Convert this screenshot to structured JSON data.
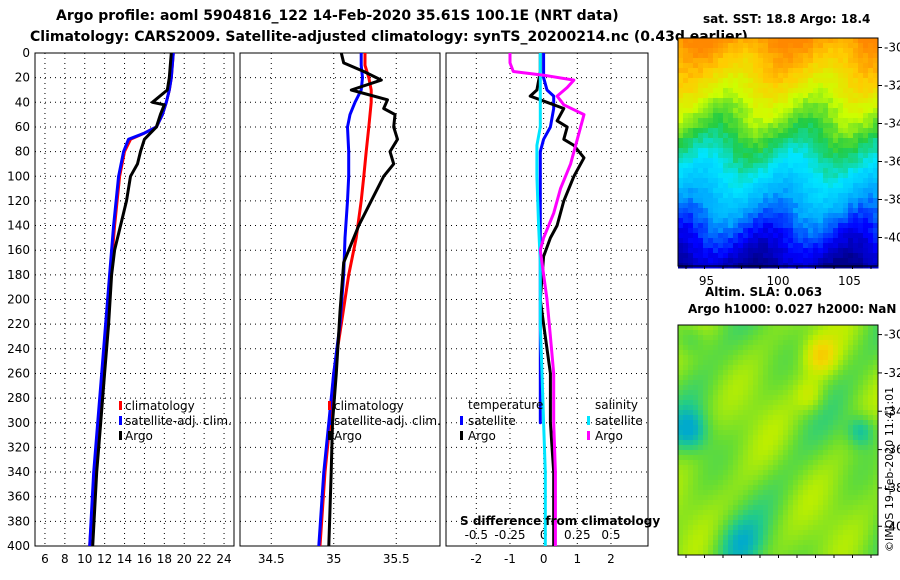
{
  "header": {
    "title_line1": "Argo profile: aoml 5904816_122 14-Feb-2020 35.61S 100.1E (NRT data)",
    "title_line2": "Climatology: CARS2009. Satellite-adjusted climatology: synTS_20200214.nc (0.43d earlier)"
  },
  "colors": {
    "climatology": "#ff0000",
    "satellite_adj": "#0000ff",
    "argo": "#000000",
    "t_satellite": "#0000ff",
    "t_argo": "#000000",
    "s_satellite": "#00e5ff",
    "s_argo": "#ff00ff",
    "grid": "#000000"
  },
  "depth_axis": {
    "ylim": [
      0,
      400
    ],
    "ticks": [
      "0",
      "20",
      "40",
      "60",
      "80",
      "100",
      "120",
      "140",
      "160",
      "180",
      "200",
      "220",
      "240",
      "260",
      "280",
      "300",
      "320",
      "340",
      "360",
      "380",
      "400"
    ]
  },
  "chart_data": [
    {
      "type": "line",
      "name": "temperature",
      "xlim": [
        5,
        25
      ],
      "ylim": [
        400,
        0
      ],
      "xticks": [
        6,
        8,
        10,
        12,
        14,
        16,
        18,
        20,
        22,
        24
      ],
      "xtick_labels": [
        "6",
        "8",
        "10",
        "12",
        "14",
        "16",
        "18",
        "20",
        "22",
        "24"
      ],
      "grid": "vertical dotted",
      "series": [
        {
          "name": "climatology",
          "color": "#ff0000",
          "x": [
            18.9,
            18.8,
            18.7,
            18.5,
            18.2,
            17.8,
            17.2,
            16.0,
            14.6,
            14.0,
            13.5,
            13.0,
            12.6,
            12.2,
            11.8,
            11.4,
            11.0,
            10.5
          ],
          "y": [
            0,
            10,
            20,
            30,
            40,
            50,
            60,
            65,
            70,
            80,
            100,
            140,
            180,
            220,
            260,
            300,
            340,
            400
          ]
        },
        {
          "name": "satellite-adj. clim.",
          "color": "#0000ff",
          "x": [
            18.9,
            18.8,
            18.7,
            18.5,
            18.2,
            17.8,
            17.2,
            16.0,
            14.4,
            13.9,
            13.4,
            12.9,
            12.5,
            12.1,
            11.7,
            11.3,
            10.9,
            10.5
          ],
          "y": [
            0,
            10,
            20,
            30,
            40,
            50,
            60,
            65,
            70,
            80,
            100,
            140,
            180,
            220,
            260,
            300,
            340,
            400
          ]
        },
        {
          "name": "Argo",
          "color": "#000000",
          "x": [
            18.7,
            18.6,
            18.5,
            18.3,
            16.8,
            18.0,
            17.6,
            17.2,
            16.0,
            15.6,
            15.3,
            14.6,
            14.2,
            13.0,
            12.7,
            12.4,
            12.0,
            11.6,
            11.2,
            10.8
          ],
          "y": [
            0,
            10,
            20,
            30,
            40,
            42,
            50,
            60,
            70,
            80,
            90,
            100,
            120,
            160,
            180,
            220,
            260,
            300,
            340,
            400
          ]
        }
      ],
      "legend": {
        "position": "bottom-right",
        "entries": [
          "climatology",
          "satellite-adj. clim.",
          "Argo"
        ]
      }
    },
    {
      "type": "line",
      "name": "salinity",
      "xlim": [
        34.25,
        35.85
      ],
      "ylim": [
        400,
        0
      ],
      "xticks": [
        34.5,
        35.0,
        35.5
      ],
      "xtick_labels": [
        "34.5",
        "35",
        "35.5"
      ],
      "grid": "vertical dotted",
      "series": [
        {
          "name": "climatology",
          "color": "#ff0000",
          "x": [
            35.25,
            35.25,
            35.28,
            35.3,
            35.3,
            35.29,
            35.28,
            35.26,
            35.24,
            35.22,
            35.18,
            35.12,
            35.06,
            35.0,
            34.97,
            34.93,
            34.89
          ],
          "y": [
            0,
            10,
            20,
            30,
            40,
            50,
            60,
            80,
            100,
            120,
            150,
            180,
            220,
            260,
            300,
            340,
            400
          ]
        },
        {
          "name": "satellite-adj. clim.",
          "color": "#0000ff",
          "x": [
            35.22,
            35.22,
            35.23,
            35.22,
            35.17,
            35.13,
            35.11,
            35.12,
            35.12,
            35.11,
            35.09,
            35.08,
            35.05,
            35.0,
            34.96,
            34.92,
            34.88
          ],
          "y": [
            0,
            10,
            20,
            30,
            40,
            50,
            60,
            80,
            100,
            120,
            150,
            180,
            220,
            260,
            300,
            340,
            400
          ]
        },
        {
          "name": "Argo",
          "color": "#000000",
          "x": [
            35.06,
            35.08,
            35.24,
            35.38,
            35.14,
            35.43,
            35.4,
            35.49,
            35.48,
            35.51,
            35.45,
            35.48,
            35.4,
            35.3,
            35.2,
            35.08,
            35.05,
            35.02,
            34.99,
            34.98,
            34.96
          ],
          "y": [
            0,
            8,
            15,
            22,
            30,
            38,
            45,
            50,
            60,
            70,
            80,
            90,
            100,
            120,
            140,
            170,
            210,
            260,
            300,
            340,
            400
          ]
        }
      ],
      "legend": {
        "position": "bottom-right",
        "entries": [
          "climatology",
          "satellite-adj. clim.",
          "Argo"
        ]
      }
    },
    {
      "type": "line",
      "name": "difference from climatology",
      "xlabel": "S difference from climatology",
      "xlim": [
        -2.9,
        3.1
      ],
      "ylim": [
        400,
        0
      ],
      "xticks": [
        -2,
        -1,
        0,
        1,
        2
      ],
      "xtick_labels": [
        "-2",
        "-1",
        "0",
        "1",
        "2"
      ],
      "secondary_xticks": [
        -0.5,
        -0.25,
        0,
        0.25,
        0.5
      ],
      "secondary_xtick_labels": [
        "-0.5",
        "-0.25",
        "0",
        "0.25",
        "0.5"
      ],
      "grid": "vertical dotted",
      "series": [
        {
          "name": "temperature satellite",
          "color": "#0000ff",
          "x": [
            0.0,
            0.0,
            0.1,
            0.3,
            0.3,
            0.2,
            0.0,
            -0.1,
            -0.1,
            -0.1,
            -0.1,
            -0.1,
            -0.1,
            -0.1
          ],
          "y": [
            0,
            20,
            30,
            35,
            45,
            60,
            70,
            80,
            100,
            140,
            160,
            200,
            260,
            300
          ]
        },
        {
          "name": "temperature Argo",
          "color": "#000000",
          "x": [
            -0.1,
            -0.1,
            -0.2,
            -0.4,
            -0.1,
            0.6,
            0.4,
            0.7,
            0.6,
            0.9,
            1.2,
            0.9,
            0.6,
            0.4,
            0.2,
            0.0,
            -0.1,
            0.0,
            0.1,
            0.2,
            0.2,
            0.3,
            0.3
          ],
          "y": [
            0,
            15,
            30,
            35,
            38,
            45,
            55,
            60,
            70,
            75,
            85,
            100,
            120,
            140,
            150,
            165,
            200,
            220,
            240,
            260,
            300,
            340,
            400
          ]
        },
        {
          "name": "salinity satellite",
          "color": "#00e5ff",
          "x": [
            -0.1,
            -0.1,
            -0.1,
            -0.1,
            -0.2,
            -0.2,
            -0.15,
            -0.1,
            -0.1,
            -0.05,
            0.0,
            0.05,
            0.05,
            0.05
          ],
          "y": [
            0,
            20,
            40,
            60,
            75,
            100,
            140,
            170,
            220,
            260,
            300,
            340,
            360,
            400
          ]
        },
        {
          "name": "salinity Argo",
          "color": "#ff00ff",
          "x": [
            -1.0,
            -1.0,
            -0.9,
            0.0,
            0.9,
            0.7,
            0.4,
            0.6,
            1.2,
            1.0,
            0.8,
            0.5,
            0.3,
            0.0,
            -0.1,
            0.1,
            0.2,
            0.3,
            0.3,
            0.35,
            0.35
          ],
          "y": [
            0,
            8,
            15,
            18,
            22,
            28,
            35,
            42,
            50,
            70,
            90,
            110,
            130,
            150,
            160,
            200,
            230,
            260,
            300,
            340,
            400
          ]
        }
      ],
      "legend_temperature": {
        "title": "temperature",
        "entries": [
          "satellite",
          "Argo"
        ]
      },
      "legend_salinity": {
        "title": "salinity",
        "entries": [
          "satellite",
          "Argo"
        ]
      }
    },
    {
      "type": "heatmap",
      "name": "sat_sst_map",
      "title": "sat. SST: 18.8 Argo: 18.4",
      "xlim": [
        93,
        107
      ],
      "ylim": [
        -41.5,
        -29.5
      ],
      "xticks": [
        95,
        100,
        105
      ],
      "xtick_labels": [
        "95",
        "100",
        "105"
      ],
      "yticks": [
        -30,
        -32,
        -34,
        -36,
        -38,
        -40
      ],
      "ytick_labels": [
        "-30",
        "-32",
        "-34",
        "-36",
        "-38",
        "-40"
      ],
      "colormap": [
        "#00008b",
        "#0000ff",
        "#00aaff",
        "#00e5ff",
        "#22cc44",
        "#ccff00",
        "#ffcc00",
        "#ff8800"
      ]
    },
    {
      "type": "heatmap",
      "name": "altim_sla_map",
      "title_line1": "Altim. SLA: 0.063",
      "title_line2": "Argo h1000: 0.027 h2000: NaN",
      "xlim": [
        93,
        107
      ],
      "ylim": [
        -41.5,
        -29.5
      ],
      "yticks": [
        -30,
        -32,
        -34,
        -36,
        -38,
        -40
      ],
      "ytick_labels": [
        "-30",
        "-32",
        "-34",
        "-36",
        "-38",
        "-40"
      ]
    }
  ],
  "legends": {
    "temp_panel": [
      "climatology",
      "satellite-adj. clim.",
      "Argo"
    ],
    "sal_panel": [
      "climatology",
      "satellite-adj. clim.",
      "Argo"
    ],
    "diff_temperature_title": "temperature",
    "diff_salinity_title": "salinity",
    "diff_temp_entries": [
      "satellite",
      "Argo"
    ],
    "diff_sal_entries": [
      "satellite",
      "Argo"
    ]
  },
  "credit": "©IMOS 19-Feb-2020 11:41:01"
}
